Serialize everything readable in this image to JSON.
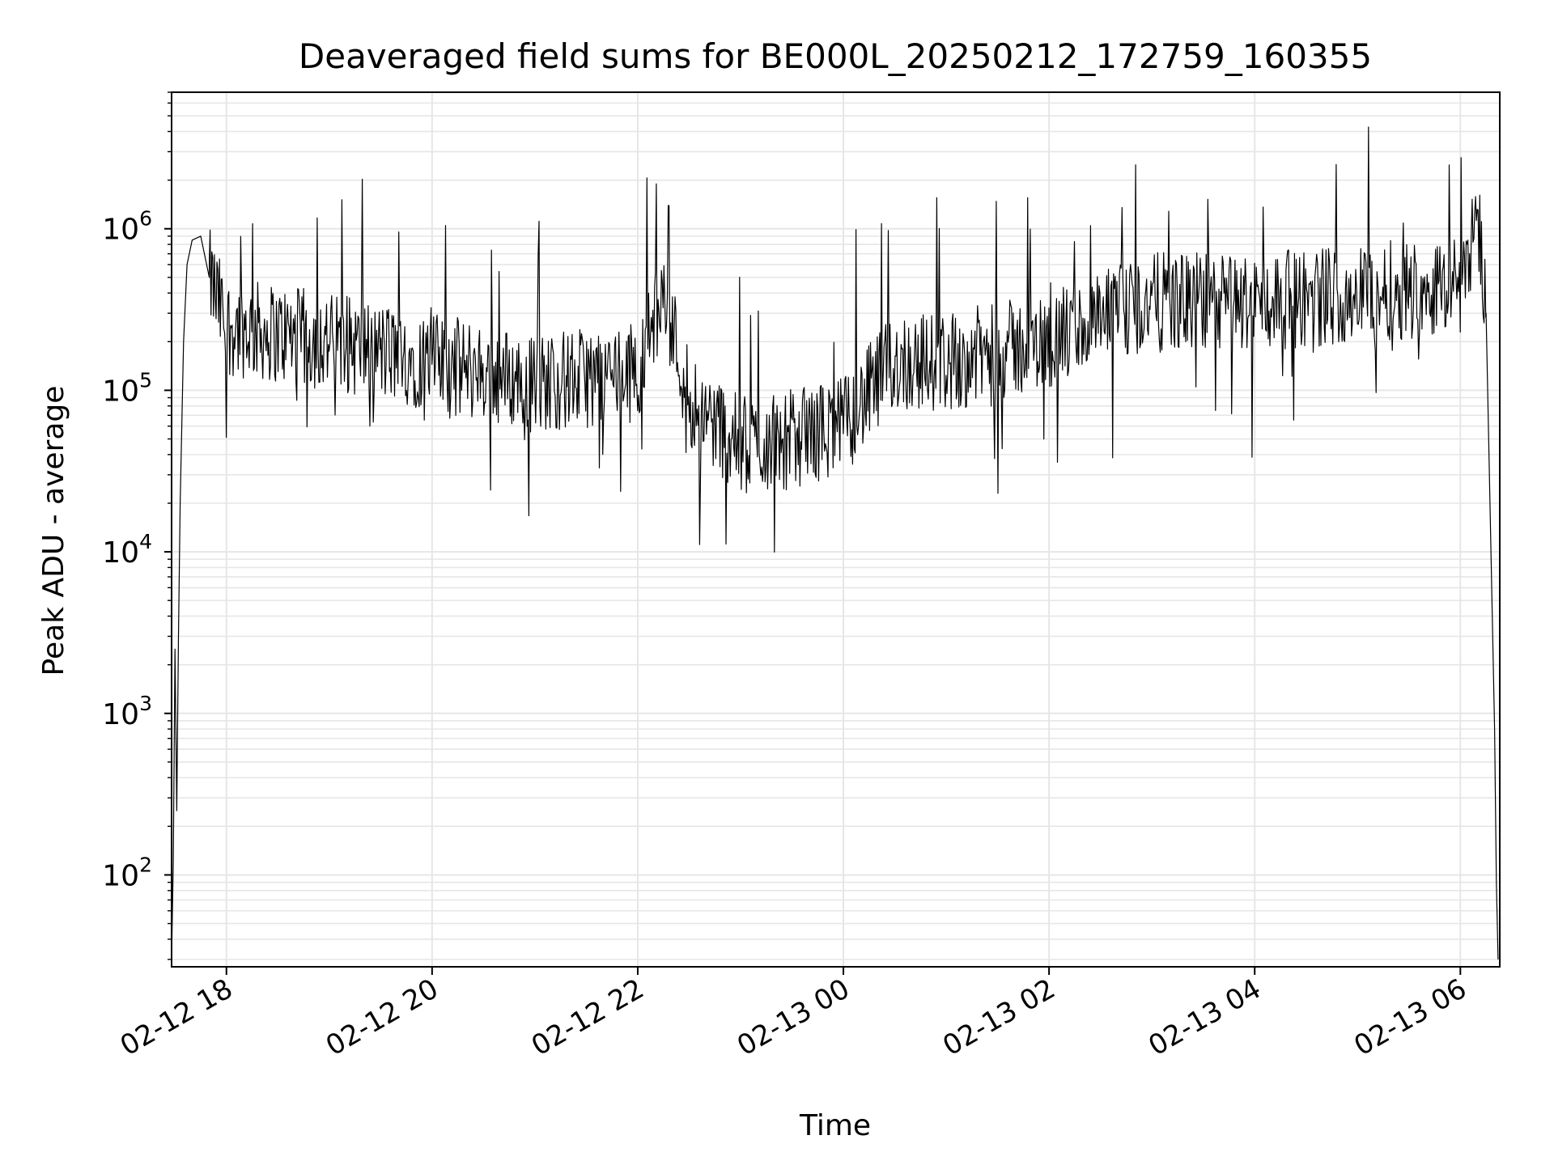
{
  "chart_data": {
    "type": "line",
    "title": "Deaveraged field sums for BE000L_20250212_172759_160355",
    "xlabel": "Time",
    "ylabel": "Peak ADU - average",
    "yscale": "log",
    "xlim": [
      "2025-02-12 17:28",
      "2025-02-13 06:23"
    ],
    "ylim": [
      27,
      7000000
    ],
    "grid": {
      "major": true,
      "minor_y": true,
      "color": "#e6e6e6"
    },
    "line_color": "#000000",
    "x_ticks": [
      {
        "t": "2025-02-12 18:00",
        "label": "02-12 18"
      },
      {
        "t": "2025-02-12 20:00",
        "label": "02-12 20"
      },
      {
        "t": "2025-02-12 22:00",
        "label": "02-12 22"
      },
      {
        "t": "2025-02-13 00:00",
        "label": "02-13 00"
      },
      {
        "t": "2025-02-13 02:00",
        "label": "02-13 02"
      },
      {
        "t": "2025-02-13 04:00",
        "label": "02-13 04"
      },
      {
        "t": "2025-02-13 06:00",
        "label": "02-13 06"
      }
    ],
    "y_ticks": [
      {
        "value": 100,
        "base": "10",
        "exp": "2"
      },
      {
        "value": 1000,
        "base": "10",
        "exp": "3"
      },
      {
        "value": 10000,
        "base": "10",
        "exp": "4"
      },
      {
        "value": 100000,
        "base": "10",
        "exp": "5"
      },
      {
        "value": 1000000,
        "base": "10",
        "exp": "6"
      }
    ],
    "series": [
      {
        "values": [
          {
            "t": "2025-02-12 17:28",
            "y": 30
          },
          {
            "t": "2025-02-12 17:29",
            "y": 120
          },
          {
            "t": "2025-02-12 17:30",
            "y": 2500
          },
          {
            "t": "2025-02-12 17:31",
            "y": 250
          },
          {
            "t": "2025-02-12 17:32",
            "y": 3000
          },
          {
            "t": "2025-02-12 17:33",
            "y": 20000
          },
          {
            "t": "2025-02-12 17:35",
            "y": 200000
          },
          {
            "t": "2025-02-12 17:37",
            "y": 600000
          },
          {
            "t": "2025-02-12 17:40",
            "y": 850000
          },
          {
            "t": "2025-02-12 17:45",
            "y": 900000
          },
          {
            "t": "2025-02-12 17:50",
            "y": 500000
          },
          {
            "t": "2025-02-12 18:00",
            "y": 250000
          },
          {
            "t": "2025-02-12 19:00",
            "y": 200000
          },
          {
            "t": "2025-02-12 20:00",
            "y": 150000
          },
          {
            "t": "2025-02-12 21:00",
            "y": 110000
          },
          {
            "t": "2025-02-12 22:00",
            "y": 130000
          },
          {
            "t": "2025-02-12 22:15",
            "y": 400000
          },
          {
            "t": "2025-02-12 22:30",
            "y": 90000
          },
          {
            "t": "2025-02-12 23:00",
            "y": 45000
          },
          {
            "t": "2025-02-12 23:30",
            "y": 50000
          },
          {
            "t": "2025-02-13 00:00",
            "y": 60000
          },
          {
            "t": "2025-02-13 00:30",
            "y": 150000
          },
          {
            "t": "2025-02-13 01:00",
            "y": 150000
          },
          {
            "t": "2025-02-13 02:00",
            "y": 200000
          },
          {
            "t": "2025-02-13 03:00",
            "y": 350000
          },
          {
            "t": "2025-02-13 04:00",
            "y": 350000
          },
          {
            "t": "2025-02-13 05:00",
            "y": 400000
          },
          {
            "t": "2025-02-13 06:00",
            "y": 450000
          },
          {
            "t": "2025-02-13 06:10",
            "y": 1300000
          },
          {
            "t": "2025-02-13 06:15",
            "y": 300000
          },
          {
            "t": "2025-02-13 06:20",
            "y": 800
          },
          {
            "t": "2025-02-13 06:21",
            "y": 90
          },
          {
            "t": "2025-02-13 06:22",
            "y": 30
          }
        ]
      }
    ]
  }
}
